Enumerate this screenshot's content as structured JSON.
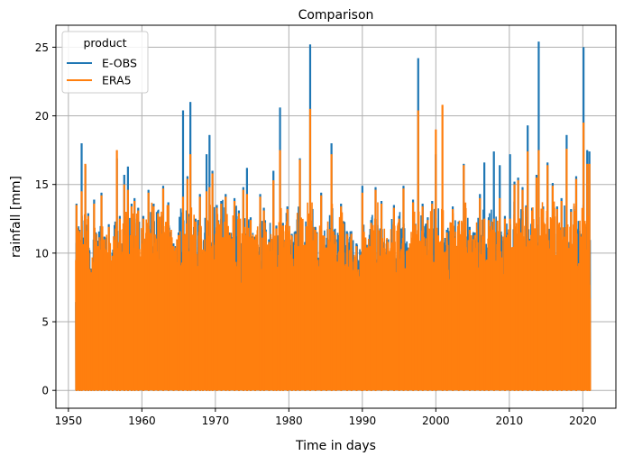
{
  "chart_data": {
    "type": "line",
    "title": "Comparison",
    "xlabel": "Time in days",
    "ylabel": "rainfall [mm]",
    "xlim": [
      1948.3,
      2024.5
    ],
    "ylim": [
      -1.3,
      26.6
    ],
    "x_ticks": [
      1950,
      1960,
      1970,
      1980,
      1990,
      2000,
      2010,
      2020
    ],
    "y_ticks": [
      0,
      5,
      10,
      15,
      20,
      25
    ],
    "grid": true,
    "legend": {
      "title": "product",
      "placement": "top-left"
    },
    "x_range_of_data": [
      1951,
      2021
    ],
    "series": [
      {
        "name": "E-OBS",
        "color": "#1f77b4",
        "peaks": [
          [
            1951.1,
            13.6
          ],
          [
            1951.5,
            11.7
          ],
          [
            1951.8,
            18.0
          ],
          [
            1952.3,
            16.4
          ],
          [
            1952.7,
            12.9
          ],
          [
            1953.1,
            8.8
          ],
          [
            1953.5,
            13.9
          ],
          [
            1954.0,
            10.9
          ],
          [
            1954.5,
            14.4
          ],
          [
            1954.9,
            11.2
          ],
          [
            1955.5,
            12.1
          ],
          [
            1956.0,
            10.0
          ],
          [
            1956.6,
            16.9
          ],
          [
            1957.0,
            12.7
          ],
          [
            1957.6,
            15.7
          ],
          [
            1958.1,
            16.3
          ],
          [
            1958.6,
            13.6
          ],
          [
            1959.0,
            14.0
          ],
          [
            1959.5,
            13.3
          ],
          [
            1960.2,
            12.7
          ],
          [
            1960.9,
            14.6
          ],
          [
            1961.6,
            13.6
          ],
          [
            1962.2,
            13.1
          ],
          [
            1962.9,
            14.9
          ],
          [
            1963.6,
            13.7
          ],
          [
            1964.3,
            10.7
          ],
          [
            1965.0,
            11.5
          ],
          [
            1965.6,
            20.4
          ],
          [
            1966.2,
            15.6
          ],
          [
            1966.6,
            21.0
          ],
          [
            1967.3,
            12.5
          ],
          [
            1967.9,
            14.3
          ],
          [
            1968.3,
            10.1
          ],
          [
            1968.8,
            17.2
          ],
          [
            1969.2,
            18.6
          ],
          [
            1969.6,
            16.0
          ],
          [
            1970.2,
            13.5
          ],
          [
            1970.8,
            13.8
          ],
          [
            1971.4,
            14.3
          ],
          [
            1971.9,
            11.5
          ],
          [
            1972.6,
            14.0
          ],
          [
            1973.2,
            13.1
          ],
          [
            1973.8,
            14.8
          ],
          [
            1974.3,
            16.2
          ],
          [
            1974.8,
            12.6
          ],
          [
            1975.4,
            11.2
          ],
          [
            1976.1,
            14.3
          ],
          [
            1976.6,
            13.3
          ],
          [
            1977.3,
            11.0
          ],
          [
            1977.9,
            16.0
          ],
          [
            1978.3,
            12.0
          ],
          [
            1978.8,
            20.6
          ],
          [
            1979.2,
            12.2
          ],
          [
            1979.8,
            13.4
          ],
          [
            1980.4,
            11.4
          ],
          [
            1980.9,
            11.6
          ],
          [
            1981.5,
            16.9
          ],
          [
            1982.2,
            10.8
          ],
          [
            1982.9,
            25.2
          ],
          [
            1983.6,
            11.9
          ],
          [
            1984.4,
            14.4
          ],
          [
            1985.1,
            10.6
          ],
          [
            1985.8,
            18.0
          ],
          [
            1986.4,
            11.0
          ],
          [
            1987.1,
            13.6
          ],
          [
            1987.9,
            11.6
          ],
          [
            1988.5,
            11.6
          ],
          [
            1989.2,
            10.7
          ],
          [
            1989.9,
            10.1
          ],
          [
            1990.0,
            14.9
          ],
          [
            1990.6,
            10.6
          ],
          [
            1991.2,
            12.4
          ],
          [
            1991.8,
            14.8
          ],
          [
            1992.6,
            13.8
          ],
          [
            1993.5,
            11.0
          ],
          [
            1994.3,
            13.5
          ],
          [
            1995.0,
            12.7
          ],
          [
            1995.6,
            14.9
          ],
          [
            1996.2,
            10.4
          ],
          [
            1996.9,
            13.9
          ],
          [
            1997.6,
            24.2
          ],
          [
            1998.2,
            13.6
          ],
          [
            1998.9,
            12.6
          ],
          [
            1999.5,
            13.8
          ],
          [
            2000.0,
            17.2
          ],
          [
            2000.9,
            11.6
          ],
          [
            2001.5,
            11.7
          ],
          [
            2002.3,
            13.4
          ],
          [
            2003.1,
            12.3
          ],
          [
            2003.8,
            16.5
          ],
          [
            2004.6,
            11.9
          ],
          [
            2005.3,
            11.5
          ],
          [
            2006.0,
            14.3
          ],
          [
            2006.6,
            16.6
          ],
          [
            2007.2,
            12.6
          ],
          [
            2007.9,
            17.4
          ],
          [
            2008.7,
            16.4
          ],
          [
            2009.4,
            12.7
          ],
          [
            2010.1,
            17.2
          ],
          [
            2010.7,
            15.2
          ],
          [
            2011.2,
            15.5
          ],
          [
            2011.8,
            14.8
          ],
          [
            2012.5,
            19.3
          ],
          [
            2013.1,
            13.3
          ],
          [
            2013.7,
            15.7
          ],
          [
            2014.0,
            25.4
          ],
          [
            2014.6,
            13.4
          ],
          [
            2015.2,
            16.6
          ],
          [
            2015.9,
            15.1
          ],
          [
            2016.5,
            13.4
          ],
          [
            2017.1,
            14.0
          ],
          [
            2017.8,
            18.6
          ],
          [
            2018.4,
            13.2
          ],
          [
            2019.1,
            15.6
          ],
          [
            2019.8,
            11.4
          ],
          [
            2020.1,
            25.0
          ],
          [
            2020.6,
            17.5
          ],
          [
            2020.9,
            17.4
          ]
        ]
      },
      {
        "name": "ERA5",
        "color": "#ff7f0e",
        "peaks": [
          [
            1951.1,
            13.5
          ],
          [
            1951.5,
            11.5
          ],
          [
            1951.8,
            14.5
          ],
          [
            1952.3,
            16.5
          ],
          [
            1952.7,
            12.7
          ],
          [
            1953.1,
            8.6
          ],
          [
            1953.5,
            13.6
          ],
          [
            1954.0,
            10.5
          ],
          [
            1954.5,
            14.2
          ],
          [
            1954.9,
            11.0
          ],
          [
            1955.5,
            11.9
          ],
          [
            1956.0,
            9.8
          ],
          [
            1956.6,
            17.5
          ],
          [
            1957.0,
            12.5
          ],
          [
            1957.6,
            15.0
          ],
          [
            1958.1,
            14.6
          ],
          [
            1958.6,
            13.4
          ],
          [
            1959.0,
            13.8
          ],
          [
            1959.5,
            13.1
          ],
          [
            1960.2,
            12.5
          ],
          [
            1960.9,
            14.4
          ],
          [
            1961.6,
            13.4
          ],
          [
            1962.2,
            12.9
          ],
          [
            1962.9,
            14.7
          ],
          [
            1963.6,
            13.5
          ],
          [
            1964.3,
            10.5
          ],
          [
            1965.0,
            11.3
          ],
          [
            1965.6,
            14.1
          ],
          [
            1966.2,
            15.4
          ],
          [
            1966.6,
            17.2
          ],
          [
            1967.3,
            12.3
          ],
          [
            1967.9,
            14.1
          ],
          [
            1968.3,
            9.9
          ],
          [
            1968.8,
            14.5
          ],
          [
            1969.2,
            14.8
          ],
          [
            1969.6,
            15.8
          ],
          [
            1970.2,
            13.3
          ],
          [
            1970.8,
            13.6
          ],
          [
            1971.4,
            14.1
          ],
          [
            1971.9,
            11.3
          ],
          [
            1972.6,
            13.8
          ],
          [
            1973.2,
            12.9
          ],
          [
            1973.8,
            14.6
          ],
          [
            1974.3,
            14.3
          ],
          [
            1974.8,
            12.4
          ],
          [
            1975.4,
            11.0
          ],
          [
            1976.1,
            14.1
          ],
          [
            1976.6,
            13.1
          ],
          [
            1977.3,
            10.8
          ],
          [
            1977.9,
            15.3
          ],
          [
            1978.3,
            11.8
          ],
          [
            1978.8,
            17.5
          ],
          [
            1979.2,
            12.0
          ],
          [
            1979.8,
            13.2
          ],
          [
            1980.4,
            11.2
          ],
          [
            1980.9,
            11.4
          ],
          [
            1981.5,
            16.8
          ],
          [
            1982.2,
            10.6
          ],
          [
            1982.9,
            20.5
          ],
          [
            1983.6,
            11.7
          ],
          [
            1984.4,
            14.2
          ],
          [
            1985.1,
            10.4
          ],
          [
            1985.8,
            17.2
          ],
          [
            1986.4,
            10.8
          ],
          [
            1987.1,
            13.4
          ],
          [
            1987.9,
            11.4
          ],
          [
            1988.5,
            11.4
          ],
          [
            1989.2,
            10.5
          ],
          [
            1989.9,
            9.9
          ],
          [
            1990.0,
            14.4
          ],
          [
            1990.6,
            10.4
          ],
          [
            1991.2,
            12.2
          ],
          [
            1991.8,
            14.6
          ],
          [
            1992.6,
            13.6
          ],
          [
            1993.5,
            10.8
          ],
          [
            1994.3,
            13.3
          ],
          [
            1995.0,
            12.5
          ],
          [
            1995.6,
            14.7
          ],
          [
            1996.2,
            10.2
          ],
          [
            1996.9,
            13.7
          ],
          [
            1997.6,
            20.4
          ],
          [
            1998.2,
            13.4
          ],
          [
            1998.9,
            12.4
          ],
          [
            1999.5,
            13.6
          ],
          [
            2000.0,
            19.0
          ],
          [
            2000.9,
            20.8
          ],
          [
            2001.5,
            11.5
          ],
          [
            2002.3,
            13.2
          ],
          [
            2003.1,
            12.1
          ],
          [
            2003.8,
            16.4
          ],
          [
            2004.6,
            11.7
          ],
          [
            2005.3,
            11.3
          ],
          [
            2006.0,
            14.0
          ],
          [
            2006.6,
            12.5
          ],
          [
            2007.2,
            12.4
          ],
          [
            2007.9,
            12.5
          ],
          [
            2008.7,
            14.0
          ],
          [
            2009.4,
            12.5
          ],
          [
            2010.1,
            12.5
          ],
          [
            2010.7,
            15.0
          ],
          [
            2011.2,
            15.3
          ],
          [
            2011.8,
            14.6
          ],
          [
            2012.5,
            17.4
          ],
          [
            2013.1,
            13.1
          ],
          [
            2013.7,
            15.5
          ],
          [
            2014.0,
            17.5
          ],
          [
            2014.6,
            13.2
          ],
          [
            2015.2,
            16.4
          ],
          [
            2015.9,
            14.9
          ],
          [
            2016.5,
            13.2
          ],
          [
            2017.1,
            13.8
          ],
          [
            2017.8,
            17.6
          ],
          [
            2018.4,
            13.0
          ],
          [
            2019.1,
            15.4
          ],
          [
            2019.8,
            11.2
          ],
          [
            2020.1,
            19.5
          ],
          [
            2020.6,
            16.5
          ],
          [
            2020.9,
            16.5
          ]
        ]
      }
    ]
  }
}
